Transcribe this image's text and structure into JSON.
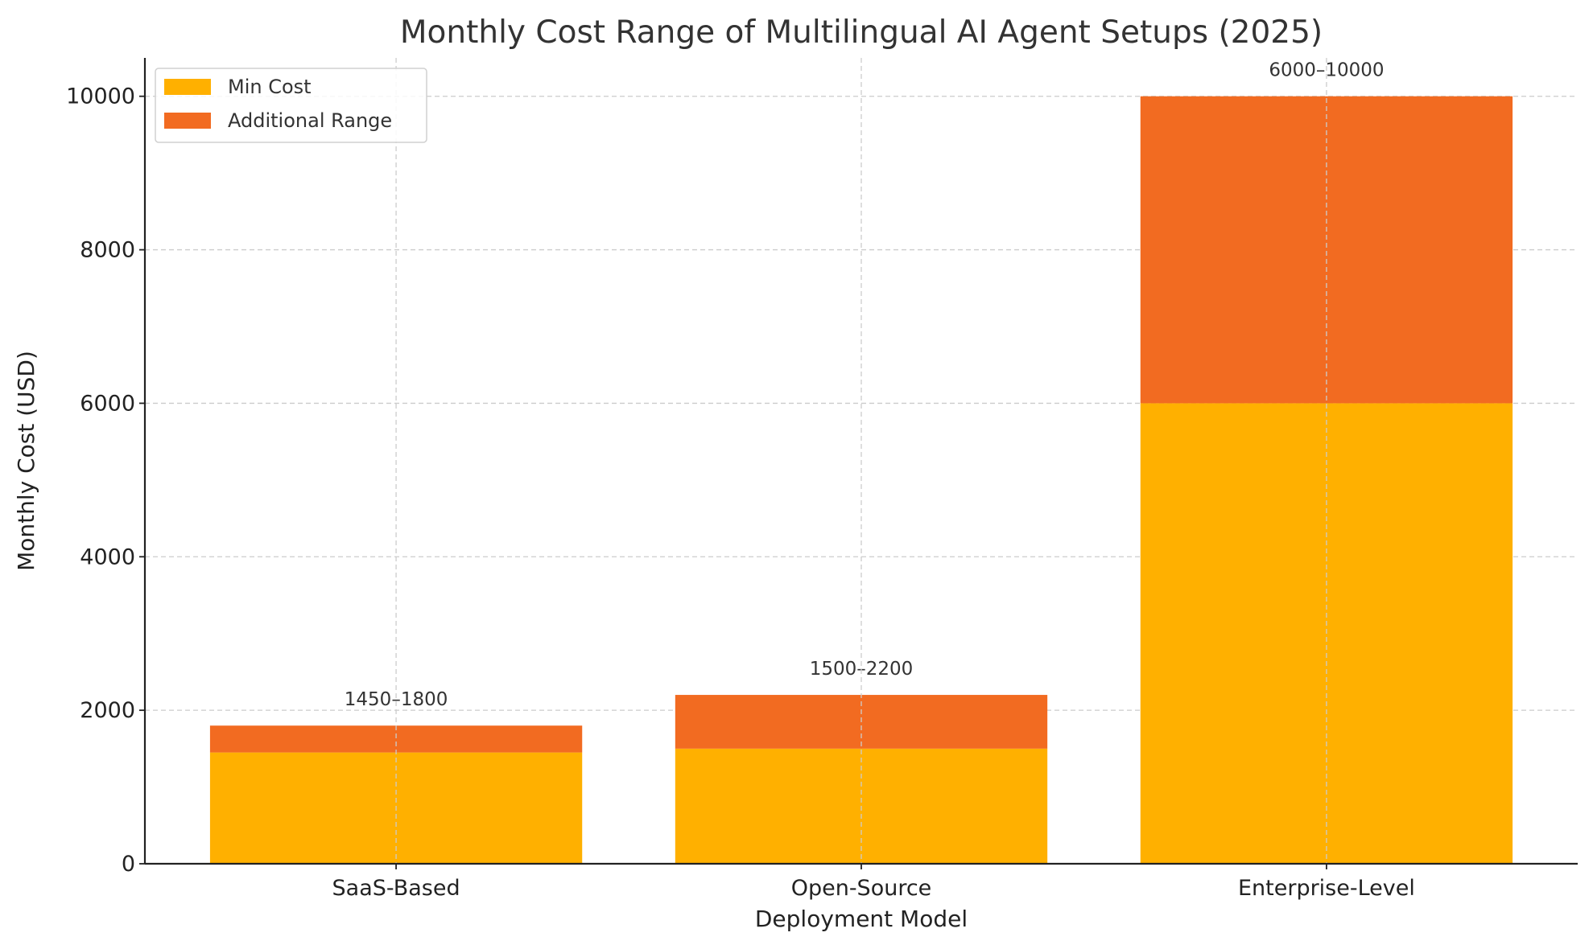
{
  "chart_data": {
    "type": "bar",
    "stacked": true,
    "title": "Monthly Cost Range of Multilingual AI Agent Setups (2025)",
    "xlabel": "Deployment Model",
    "ylabel": "Monthly Cost (USD)",
    "categories": [
      "SaaS-Based",
      "Open-Source",
      "Enterprise-Level"
    ],
    "series": [
      {
        "name": "Min Cost",
        "values": [
          1450,
          1500,
          6000
        ],
        "color": "#FFB000"
      },
      {
        "name": "Additional Range",
        "values": [
          350,
          700,
          4000
        ],
        "color": "#F26B21"
      }
    ],
    "bar_labels": [
      "1450–1800",
      "1500–2200",
      "6000–10000"
    ],
    "ylim": [
      0,
      10500
    ],
    "yticks": [
      0,
      2000,
      4000,
      6000,
      8000,
      10000
    ],
    "ytick_labels": [
      "0",
      "2000",
      "4000",
      "6000",
      "8000",
      "10000"
    ],
    "grid": true,
    "legend_position": "top-left"
  }
}
